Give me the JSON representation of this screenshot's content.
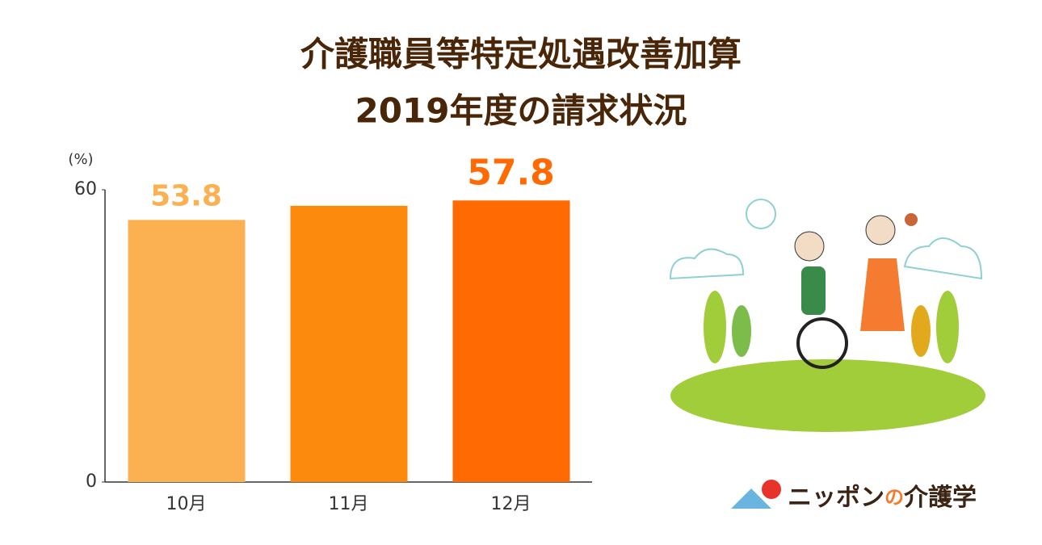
{
  "chart_data": {
    "type": "bar",
    "title": [
      "介護職員等特定処遇改善加算",
      "2019年度の請求状況"
    ],
    "y_label": "(%)",
    "categories": [
      "10月",
      "11月",
      "12月"
    ],
    "values": [
      53.8,
      56.7,
      57.8
    ],
    "value_labels": [
      "53.8",
      null,
      "57.8"
    ],
    "colors": [
      "#fbb152",
      "#fb8a0d",
      "#ff6a03"
    ],
    "ylim": [
      0,
      60
    ],
    "yticks": [
      0,
      60
    ],
    "grid": false
  },
  "logo": [
    "ニッポン",
    "の",
    "介護学"
  ]
}
